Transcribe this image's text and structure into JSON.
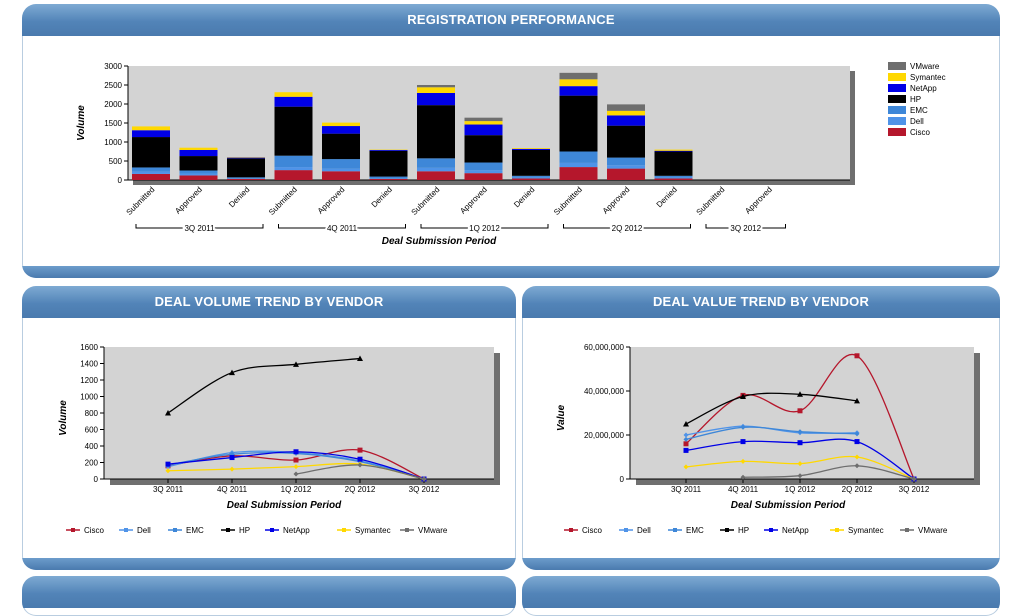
{
  "panels": {
    "registration": {
      "title": "REGISTRATION PERFORMANCE"
    },
    "volume": {
      "title": "DEAL VOLUME TREND BY VENDOR"
    },
    "value": {
      "title": "DEAL VALUE TREND BY VENDOR"
    }
  },
  "colors": {
    "Cisco": "#b5172c",
    "Dell": "#4f93e8",
    "EMC": "#3e87d8",
    "HP": "#000000",
    "NetApp": "#0000e6",
    "Symantec": "#ffd800",
    "VMware": "#6e6e6e"
  },
  "chart_data": [
    {
      "type": "bar",
      "stacked": true,
      "title": "REGISTRATION PERFORMANCE",
      "xlabel": "Deal Submission Period",
      "ylabel": "Volume",
      "ylim": [
        0,
        3000
      ],
      "yticks": [
        "0",
        "500",
        "1000",
        "1500",
        "2000",
        "2500",
        "3000"
      ],
      "groups": [
        {
          "label": "3Q 2011",
          "categories": [
            "Submitted",
            "Approved",
            "Denied"
          ]
        },
        {
          "label": "4Q 2011",
          "categories": [
            "Submitted",
            "Approved",
            "Denied"
          ]
        },
        {
          "label": "1Q 2012",
          "categories": [
            "Submitted",
            "Approved",
            "Denied"
          ]
        },
        {
          "label": "2Q 2012",
          "categories": [
            "Submitted",
            "Approved",
            "Denied"
          ]
        },
        {
          "label": "3Q 2012",
          "categories": [
            "Submitted",
            "Approved"
          ]
        }
      ],
      "legend": [
        "VMware",
        "Symantec",
        "NetApp",
        "HP",
        "EMC",
        "Dell",
        "Cisco"
      ],
      "legend_position": "right",
      "series": [
        {
          "name": "Cisco",
          "values": [
            160,
            120,
            30,
            260,
            230,
            30,
            230,
            180,
            40,
            340,
            300,
            40,
            0,
            0
          ]
        },
        {
          "name": "Dell",
          "values": [
            60,
            50,
            10,
            80,
            70,
            10,
            90,
            80,
            20,
            110,
            90,
            20,
            0,
            0
          ]
        },
        {
          "name": "EMC",
          "values": [
            110,
            80,
            30,
            300,
            250,
            50,
            250,
            200,
            50,
            300,
            200,
            50,
            0,
            0
          ]
        },
        {
          "name": "HP",
          "values": [
            800,
            380,
            500,
            1290,
            670,
            680,
            1400,
            720,
            680,
            1470,
            840,
            640,
            0,
            0
          ]
        },
        {
          "name": "NetApp",
          "values": [
            180,
            160,
            20,
            260,
            200,
            20,
            320,
            280,
            30,
            250,
            270,
            20,
            0,
            0
          ]
        },
        {
          "name": "Symantec",
          "values": [
            100,
            60,
            10,
            120,
            90,
            10,
            150,
            90,
            20,
            180,
            120,
            30,
            0,
            0
          ]
        },
        {
          "name": "VMware",
          "values": [
            0,
            0,
            0,
            0,
            0,
            0,
            60,
            90,
            0,
            170,
            170,
            0,
            0,
            0
          ]
        }
      ]
    },
    {
      "type": "line",
      "title": "DEAL VOLUME TREND BY VENDOR",
      "xlabel": "Deal Submission Period",
      "ylabel": "Volume",
      "x": [
        "3Q 2011",
        "4Q 2011",
        "1Q 2012",
        "2Q 2012",
        "3Q 2012"
      ],
      "ylim": [
        0,
        1600
      ],
      "yticks": [
        "0",
        "200",
        "400",
        "600",
        "800",
        "1000",
        "1200",
        "1400",
        "1600"
      ],
      "legend_position": "bottom",
      "series": [
        {
          "name": "Cisco",
          "values": [
            160,
            280,
            230,
            350,
            0
          ]
        },
        {
          "name": "Dell",
          "values": [
            150,
            320,
            320,
            220,
            0
          ]
        },
        {
          "name": "EMC",
          "values": [
            170,
            300,
            310,
            210,
            0
          ]
        },
        {
          "name": "HP",
          "values": [
            800,
            1290,
            1390,
            1460,
            null
          ]
        },
        {
          "name": "NetApp",
          "values": [
            180,
            260,
            330,
            240,
            0
          ]
        },
        {
          "name": "Symantec",
          "values": [
            100,
            120,
            150,
            180,
            0
          ]
        },
        {
          "name": "VMware",
          "values": [
            null,
            null,
            60,
            170,
            0
          ]
        }
      ]
    },
    {
      "type": "line",
      "title": "DEAL VALUE TREND BY VENDOR",
      "xlabel": "Deal Submission Period",
      "ylabel": "Value",
      "x": [
        "3Q 2011",
        "4Q 2011",
        "1Q 2012",
        "2Q 2012",
        "3Q 2012"
      ],
      "ylim": [
        0,
        60000000
      ],
      "yticks": [
        "0",
        "20,000,000",
        "40,000,000",
        "60,000,000"
      ],
      "legend_position": "bottom",
      "series": [
        {
          "name": "Cisco",
          "values": [
            16000000,
            38000000,
            31000000,
            56000000,
            0
          ]
        },
        {
          "name": "Dell",
          "values": [
            20000000,
            24000000,
            21000000,
            21000000,
            null
          ]
        },
        {
          "name": "EMC",
          "values": [
            18000000,
            23500000,
            21500000,
            20500000,
            null
          ]
        },
        {
          "name": "HP",
          "values": [
            25000000,
            37500000,
            38500000,
            35500000,
            null
          ]
        },
        {
          "name": "NetApp",
          "values": [
            13000000,
            17000000,
            16500000,
            17000000,
            0
          ]
        },
        {
          "name": "Symantec",
          "values": [
            5500000,
            8000000,
            7000000,
            10000000,
            0
          ]
        },
        {
          "name": "VMware",
          "values": [
            null,
            800000,
            1500000,
            6000000,
            0
          ]
        }
      ]
    }
  ]
}
